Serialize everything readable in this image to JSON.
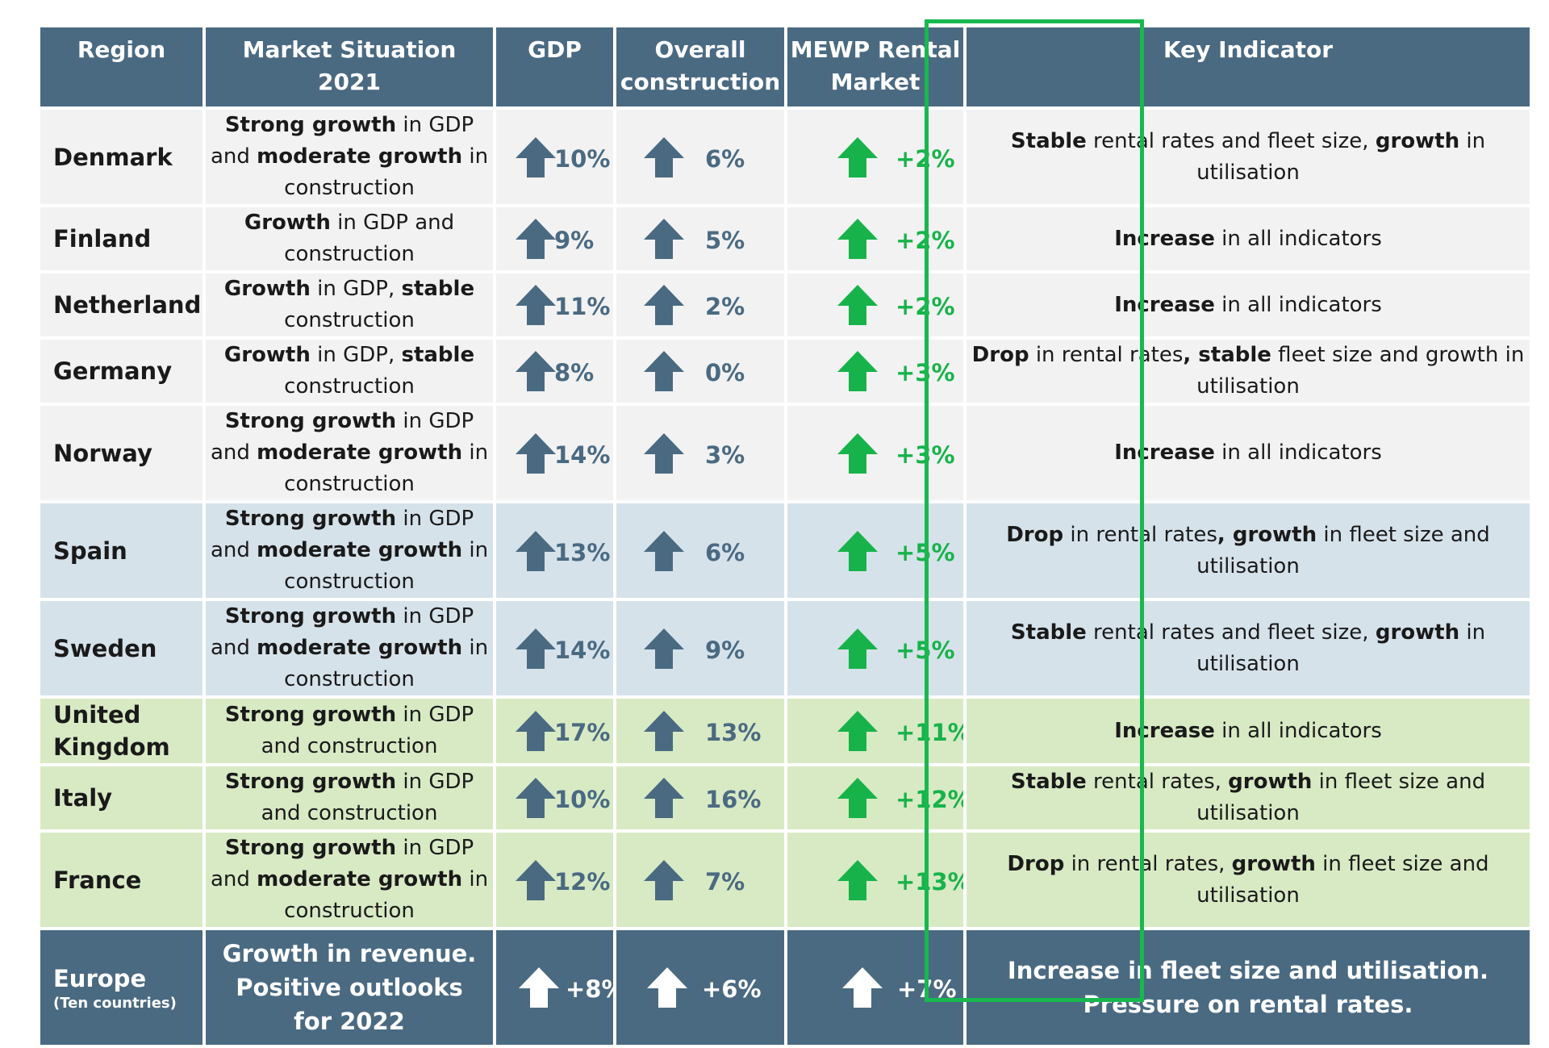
{
  "headers": {
    "region": "Region",
    "market_line1": "Market Situation",
    "market_line2": "2021",
    "gdp": "GDP",
    "construction_line1": "Overall",
    "construction_line2": "construction",
    "mewp_line1": "MEWP Rental",
    "mewp_line2": "Market",
    "indicator": "Key Indicator"
  },
  "rows": [
    {
      "region": "Denmark",
      "market": [
        [
          "Strong growth",
          true
        ],
        [
          " in GDP and ",
          false
        ],
        [
          "moderate growth",
          true
        ],
        [
          " in construction",
          false
        ]
      ],
      "gdp": "10%",
      "construction": "6%",
      "mewp": "+2%",
      "indicator": [
        [
          "Stable",
          true
        ],
        [
          " rental rates and fleet size, ",
          false
        ],
        [
          "growth",
          true
        ],
        [
          " in utilisation",
          false
        ]
      ]
    },
    {
      "region": "Finland",
      "market": [
        [
          "Growth",
          true
        ],
        [
          " in GDP and construction",
          false
        ]
      ],
      "gdp": "9%",
      "construction": "5%",
      "mewp": "+2%",
      "indicator": [
        [
          "Increase",
          true
        ],
        [
          " in all indicators",
          false
        ]
      ]
    },
    {
      "region": "Netherlands",
      "market": [
        [
          "Growth",
          true
        ],
        [
          " in GDP, ",
          false
        ],
        [
          "stable",
          true
        ],
        [
          " construction",
          false
        ]
      ],
      "gdp": "11%",
      "construction": "2%",
      "mewp": "+2%",
      "indicator": [
        [
          "Increase",
          true
        ],
        [
          " in all indicators",
          false
        ]
      ]
    },
    {
      "region": "Germany",
      "market": [
        [
          "Growth",
          true
        ],
        [
          " in GDP, ",
          false
        ],
        [
          "stable",
          true
        ],
        [
          " construction",
          false
        ]
      ],
      "gdp": "8%",
      "construction": "0%",
      "mewp": "+3%",
      "indicator": [
        [
          "Drop",
          true
        ],
        [
          " in rental rates",
          false
        ],
        [
          ", stable",
          true
        ],
        [
          " fleet size and growth in utilisation",
          false
        ]
      ]
    },
    {
      "region": "Norway",
      "market": [
        [
          "Strong growth",
          true
        ],
        [
          " in GDP and ",
          false
        ],
        [
          "moderate growth",
          true
        ],
        [
          " in construction",
          false
        ]
      ],
      "gdp": "14%",
      "construction": "3%",
      "mewp": "+3%",
      "indicator": [
        [
          "Increase",
          true
        ],
        [
          " in all indicators",
          false
        ]
      ]
    },
    {
      "region": "Spain",
      "market": [
        [
          "Strong growth",
          true
        ],
        [
          " in GDP and ",
          false
        ],
        [
          "moderate growth",
          true
        ],
        [
          " in construction",
          false
        ]
      ],
      "gdp": "13%",
      "construction": "6%",
      "mewp": "+5%",
      "indicator": [
        [
          "Drop",
          true
        ],
        [
          " in rental rates",
          false
        ],
        [
          ", growth",
          true
        ],
        [
          " in fleet size and utilisation",
          false
        ]
      ]
    },
    {
      "region": "Sweden",
      "market": [
        [
          "Strong growth",
          true
        ],
        [
          " in GDP and ",
          false
        ],
        [
          "moderate growth",
          true
        ],
        [
          " in construction",
          false
        ]
      ],
      "gdp": "14%",
      "construction": "9%",
      "mewp": "+5%",
      "indicator": [
        [
          "Stable",
          true
        ],
        [
          " rental rates and fleet size, ",
          false
        ],
        [
          "growth",
          true
        ],
        [
          " in utilisation",
          false
        ]
      ]
    },
    {
      "region": "United Kingdom",
      "market": [
        [
          "Strong growth",
          true
        ],
        [
          " in GDP and construction",
          false
        ]
      ],
      "gdp": "17%",
      "construction": "13%",
      "mewp": "+11%",
      "indicator": [
        [
          "Increase",
          true
        ],
        [
          " in all indicators",
          false
        ]
      ]
    },
    {
      "region": "Italy",
      "market": [
        [
          "Strong growth",
          true
        ],
        [
          " in GDP and construction",
          false
        ]
      ],
      "gdp": "10%",
      "construction": "16%",
      "mewp": "+12%",
      "indicator": [
        [
          "Stable",
          true
        ],
        [
          " rental rates, ",
          false
        ],
        [
          "growth",
          true
        ],
        [
          " in fleet size and utilisation",
          false
        ]
      ]
    },
    {
      "region": "France",
      "market": [
        [
          "Strong growth",
          true
        ],
        [
          " in GDP and ",
          false
        ],
        [
          "moderate growth",
          true
        ],
        [
          " in construction",
          false
        ]
      ],
      "gdp": "12%",
      "construction": "7%",
      "mewp": "+13%",
      "indicator": [
        [
          "Drop",
          true
        ],
        [
          " in rental rates, ",
          false
        ],
        [
          "growth",
          true
        ],
        [
          " in fleet size and utilisation",
          false
        ]
      ]
    }
  ],
  "europe": {
    "region": "Europe",
    "region_note": "(Ten countries)",
    "market": "Growth in revenue. Positive outlooks for 2022",
    "gdp": "+8%",
    "construction": "+6%",
    "mewp": "+7%",
    "indicator": "Increase in fleet size and utilisation. Pressure on rental rates."
  },
  "colors": {
    "header_bg": "#4a6a82",
    "arrow_dark": "#4a6a82",
    "arrow_green": "#17b34a",
    "highlight_border": "#18b84f",
    "row_grey": "#f2f2f2",
    "row_blue": "#d6e2ea",
    "row_green": "#d8eac4"
  },
  "icons": {
    "up_arrow": "up-arrow-icon"
  }
}
